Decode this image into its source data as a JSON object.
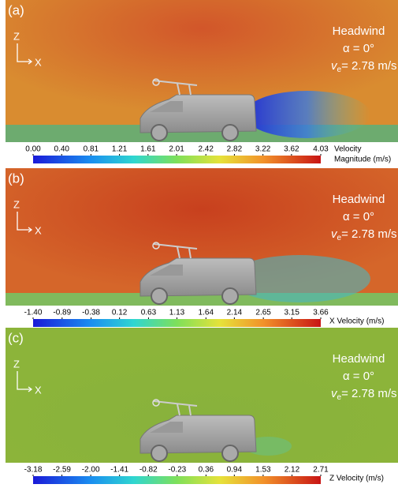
{
  "panels": [
    {
      "label": "(a)",
      "axis_z": "Z",
      "axis_x": "X",
      "condition": "Headwind",
      "alpha": "α = 0°",
      "ve_symbol": "v",
      "ve_subscript": "e",
      "ve_value": "= 2.78 m/s",
      "colorbar_title": [
        "Velocity",
        "Magnitude (m/s)"
      ],
      "colorbar_ticks": [
        {
          "value": 0,
          "label": "0.00"
        },
        {
          "value": 0.4,
          "label": "0.40"
        },
        {
          "value": 0.81,
          "label": "0.81"
        },
        {
          "value": 1.21,
          "label": "1.21"
        },
        {
          "value": 1.61,
          "label": "1.61"
        },
        {
          "value": 2.01,
          "label": "2.01"
        },
        {
          "value": 2.42,
          "label": "2.42"
        },
        {
          "value": 2.82,
          "label": "2.82"
        },
        {
          "value": 3.22,
          "label": "3.22"
        },
        {
          "value": 3.62,
          "label": "3.62"
        },
        {
          "value": 4.03,
          "label": "4.03"
        }
      ]
    },
    {
      "label": "(b)",
      "axis_z": "Z",
      "axis_x": "X",
      "condition": "Headwind",
      "alpha": "α = 0°",
      "ve_symbol": "v",
      "ve_subscript": "e",
      "ve_value": "= 2.78 m/s",
      "colorbar_title": [
        "X Velocity (m/s)"
      ],
      "colorbar_ticks": [
        {
          "value": -1.4,
          "label": "-1.40"
        },
        {
          "value": -0.89,
          "label": "-0.89"
        },
        {
          "value": -0.38,
          "label": "-0.38"
        },
        {
          "value": 0.12,
          "label": "0.12"
        },
        {
          "value": 0.63,
          "label": "0.63"
        },
        {
          "value": 1.13,
          "label": "1.13"
        },
        {
          "value": 1.64,
          "label": "1.64"
        },
        {
          "value": 2.14,
          "label": "2.14"
        },
        {
          "value": 2.65,
          "label": "2.65"
        },
        {
          "value": 3.15,
          "label": "3.15"
        },
        {
          "value": 3.66,
          "label": "3.66"
        }
      ]
    },
    {
      "label": "(c)",
      "axis_z": "Z",
      "axis_x": "X",
      "condition": "Headwind",
      "alpha": "α = 0°",
      "ve_symbol": "v",
      "ve_subscript": "e",
      "ve_value": "= 2.78 m/s",
      "colorbar_title": [
        "Z Velocity (m/s)"
      ],
      "colorbar_ticks": [
        {
          "value": -3.18,
          "label": "-3.18"
        },
        {
          "value": -2.59,
          "label": "-2.59"
        },
        {
          "value": -2,
          "label": "-2.00"
        },
        {
          "value": -1.41,
          "label": "-1.41"
        },
        {
          "value": -0.82,
          "label": "-0.82"
        },
        {
          "value": -0.23,
          "label": "-0.23"
        },
        {
          "value": 0.36,
          "label": "0.36"
        },
        {
          "value": 0.94,
          "label": "0.94"
        },
        {
          "value": 1.53,
          "label": "1.53"
        },
        {
          "value": 2.12,
          "label": "2.12"
        },
        {
          "value": 2.71,
          "label": "2.71"
        }
      ]
    }
  ]
}
